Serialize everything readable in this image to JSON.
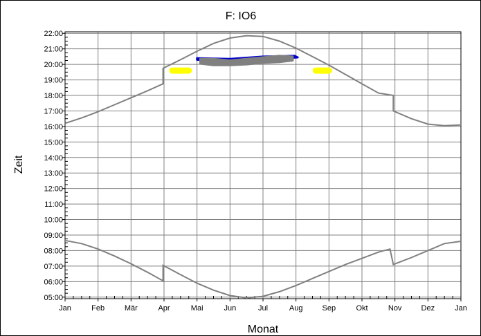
{
  "chart_data": {
    "type": "line",
    "title": "F: IO6",
    "xlabel": "Monat",
    "ylabel": "Zeit",
    "x_ticks": [
      "Jan",
      "Feb",
      "Mär",
      "Apr",
      "Mai",
      "Jun",
      "Jul",
      "Aug",
      "Sep",
      "Okt",
      "Nov",
      "Dez",
      "Jan"
    ],
    "y_ticks": [
      "05:00",
      "06:00",
      "07:00",
      "08:00",
      "09:00",
      "10:00",
      "11:00",
      "12:00",
      "13:00",
      "14:00",
      "15:00",
      "16:00",
      "17:00",
      "18:00",
      "19:00",
      "20:00",
      "21:00",
      "22:00"
    ],
    "x_unit": "month (0 = Jan 1, 12 = next Jan 1)",
    "ylim": [
      4.9,
      22.1
    ],
    "xlim": [
      0,
      12
    ],
    "grid": true,
    "series": [
      {
        "kind": "line",
        "color": "#808080",
        "points": [
          [
            0,
            16.2
          ],
          [
            0.5,
            16.55
          ],
          [
            1,
            16.95
          ],
          [
            1.5,
            17.4
          ],
          [
            2,
            17.85
          ],
          [
            2.5,
            18.3
          ],
          [
            2.97,
            18.75
          ],
          [
            2.97,
            19.75
          ],
          [
            3.5,
            20.3
          ],
          [
            4,
            20.85
          ],
          [
            4.5,
            21.35
          ],
          [
            5,
            21.7
          ],
          [
            5.5,
            21.85
          ],
          [
            6,
            21.8
          ],
          [
            6.5,
            21.5
          ],
          [
            7,
            21.05
          ],
          [
            7.5,
            20.5
          ],
          [
            8,
            19.95
          ],
          [
            8.5,
            19.35
          ],
          [
            9,
            18.75
          ],
          [
            9.5,
            18.15
          ],
          [
            9.95,
            18.0
          ],
          [
            9.95,
            17.0
          ],
          [
            10.5,
            16.5
          ],
          [
            11,
            16.15
          ],
          [
            11.5,
            16.05
          ],
          [
            12,
            16.1
          ]
        ]
      },
      {
        "kind": "line",
        "color": "#808080",
        "points": [
          [
            0,
            8.65
          ],
          [
            0.5,
            8.45
          ],
          [
            1,
            8.1
          ],
          [
            1.5,
            7.65
          ],
          [
            2,
            7.15
          ],
          [
            2.5,
            6.6
          ],
          [
            2.97,
            6.05
          ],
          [
            2.97,
            7.05
          ],
          [
            3.5,
            6.45
          ],
          [
            4,
            5.9
          ],
          [
            4.5,
            5.45
          ],
          [
            5,
            5.1
          ],
          [
            5.5,
            4.95
          ],
          [
            6,
            5.05
          ],
          [
            6.5,
            5.35
          ],
          [
            7,
            5.75
          ],
          [
            7.5,
            6.2
          ],
          [
            8,
            6.65
          ],
          [
            8.5,
            7.1
          ],
          [
            9,
            7.5
          ],
          [
            9.5,
            7.9
          ],
          [
            9.85,
            8.1
          ],
          [
            9.95,
            7.1
          ],
          [
            10.5,
            7.55
          ],
          [
            11,
            8.0
          ],
          [
            11.5,
            8.45
          ],
          [
            12,
            8.6
          ]
        ]
      },
      {
        "kind": "band",
        "color": "#0000cc",
        "points": [
          [
            4.0,
            20.4
          ],
          [
            5.0,
            20.35
          ],
          [
            6.0,
            20.5
          ],
          [
            6.95,
            20.55
          ],
          [
            7.05,
            20.45
          ],
          [
            6.0,
            20.3
          ],
          [
            5.0,
            20.2
          ],
          [
            4.0,
            20.3
          ]
        ]
      },
      {
        "kind": "band",
        "color": "#808080",
        "points": [
          [
            4.1,
            20.35
          ],
          [
            4.5,
            20.35
          ],
          [
            5.0,
            20.25
          ],
          [
            5.5,
            20.35
          ],
          [
            6.0,
            20.45
          ],
          [
            6.5,
            20.55
          ],
          [
            6.9,
            20.5
          ],
          [
            6.9,
            20.25
          ],
          [
            6.5,
            20.15
          ],
          [
            6.0,
            20.1
          ],
          [
            5.5,
            20.0
          ],
          [
            5.0,
            19.95
          ],
          [
            4.5,
            19.95
          ],
          [
            4.1,
            20.05
          ]
        ]
      },
      {
        "kind": "band",
        "color": "#ffff00",
        "points": [
          [
            3.25,
            19.6
          ],
          [
            3.75,
            19.6
          ]
        ]
      },
      {
        "kind": "band",
        "color": "#ffff00",
        "points": [
          [
            7.6,
            19.6
          ],
          [
            8.0,
            19.6
          ]
        ]
      }
    ]
  }
}
